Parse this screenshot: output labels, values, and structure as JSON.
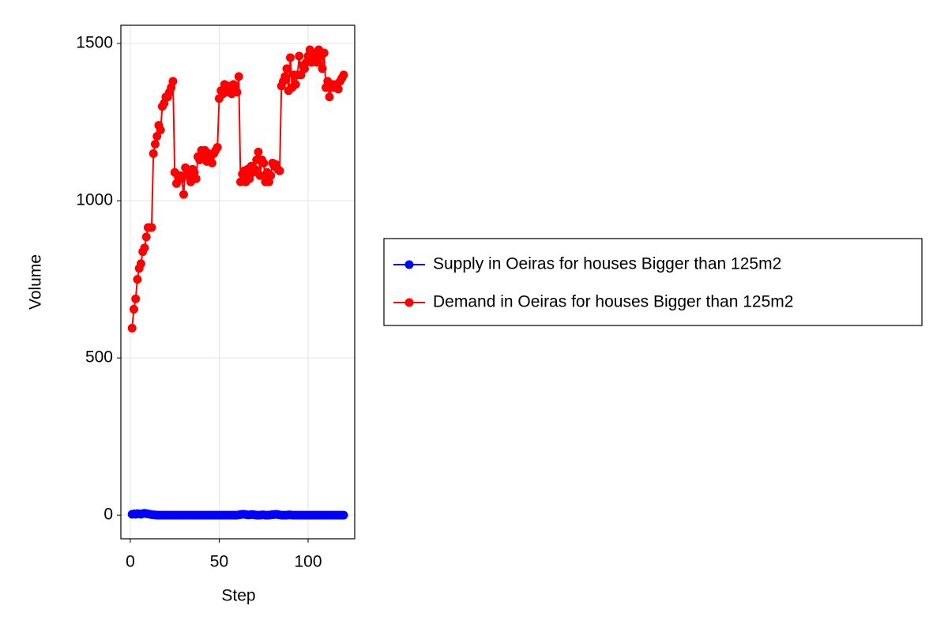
{
  "chart_data": {
    "type": "line",
    "x_label": "Step",
    "y_label": "Volume",
    "x": [
      1,
      2,
      3,
      4,
      5,
      6,
      7,
      8,
      9,
      10,
      11,
      12,
      13,
      14,
      15,
      16,
      17,
      18,
      19,
      20,
      21,
      22,
      23,
      24,
      25,
      26,
      27,
      28,
      29,
      30,
      31,
      32,
      33,
      34,
      35,
      36,
      37,
      38,
      39,
      40,
      41,
      42,
      43,
      44,
      45,
      46,
      47,
      48,
      49,
      50,
      51,
      52,
      53,
      54,
      55,
      56,
      57,
      58,
      59,
      60,
      61,
      62,
      63,
      64,
      65,
      66,
      67,
      68,
      69,
      70,
      71,
      72,
      73,
      74,
      75,
      76,
      77,
      78,
      79,
      80,
      81,
      82,
      83,
      84,
      85,
      86,
      87,
      88,
      89,
      90,
      91,
      92,
      93,
      94,
      95,
      96,
      97,
      98,
      99,
      100,
      101,
      102,
      103,
      104,
      105,
      106,
      107,
      108,
      109,
      110,
      111,
      112,
      113,
      114,
      115,
      116,
      117,
      118,
      119,
      120
    ],
    "series": [
      {
        "name": "Supply in Oeiras for houses Bigger than 125m2",
        "color": "#0000ff",
        "values": [
          3,
          4,
          3,
          5,
          4,
          3,
          5,
          6,
          5,
          4,
          3,
          2,
          1,
          1,
          0,
          0,
          0,
          0,
          0,
          0,
          0,
          0,
          0,
          0,
          0,
          0,
          0,
          0,
          0,
          0,
          0,
          0,
          0,
          0,
          0,
          0,
          0,
          0,
          0,
          0,
          0,
          0,
          0,
          0,
          0,
          0,
          0,
          0,
          0,
          0,
          0,
          0,
          0,
          0,
          0,
          0,
          0,
          0,
          0,
          0,
          1,
          2,
          3,
          3,
          2,
          1,
          1,
          2,
          2,
          1,
          0,
          0,
          0,
          1,
          1,
          0,
          0,
          0,
          1,
          2,
          2,
          3,
          2,
          1,
          0,
          0,
          0,
          0,
          1,
          1,
          0,
          0,
          0,
          0,
          0,
          0,
          0,
          0,
          0,
          0,
          0,
          0,
          0,
          0,
          0,
          0,
          0,
          0,
          0,
          0,
          0,
          0,
          0,
          0,
          0,
          0,
          0,
          0,
          0,
          0
        ]
      },
      {
        "name": "Demand in Oeiras for houses Bigger than 125m2",
        "color": "#ff0000",
        "values": [
          595,
          655,
          688,
          750,
          785,
          800,
          838,
          850,
          885,
          915,
          915,
          915,
          1150,
          1180,
          1205,
          1240,
          1225,
          1300,
          1310,
          1330,
          1330,
          1345,
          1360,
          1380,
          1090,
          1055,
          1075,
          1080,
          1070,
          1020,
          1105,
          1090,
          1080,
          1060,
          1100,
          1090,
          1070,
          1140,
          1130,
          1160,
          1145,
          1160,
          1125,
          1150,
          1135,
          1120,
          1150,
          1160,
          1170,
          1325,
          1350,
          1340,
          1370,
          1345,
          1365,
          1350,
          1340,
          1370,
          1350,
          1345,
          1395,
          1060,
          1085,
          1095,
          1060,
          1100,
          1070,
          1110,
          1090,
          1100,
          1130,
          1155,
          1080,
          1130,
          1120,
          1060,
          1090,
          1060,
          1080,
          1120,
          1110,
          1115,
          1100,
          1095,
          1365,
          1380,
          1395,
          1420,
          1350,
          1455,
          1360,
          1400,
          1370,
          1400,
          1460,
          1400,
          1430,
          1420,
          1440,
          1460,
          1480,
          1440,
          1470,
          1450,
          1440,
          1480,
          1460,
          1420,
          1470,
          1360,
          1380,
          1330,
          1360,
          1370,
          1360,
          1370,
          1355,
          1380,
          1390,
          1400
        ]
      }
    ],
    "xlim": [
      -5.3,
      126.2
    ],
    "xticks": [
      0,
      50,
      100
    ],
    "ylim": [
      -75,
      1558
    ],
    "yticks": [
      0,
      500,
      1000,
      1500
    ],
    "grid": true,
    "legend": "right"
  }
}
